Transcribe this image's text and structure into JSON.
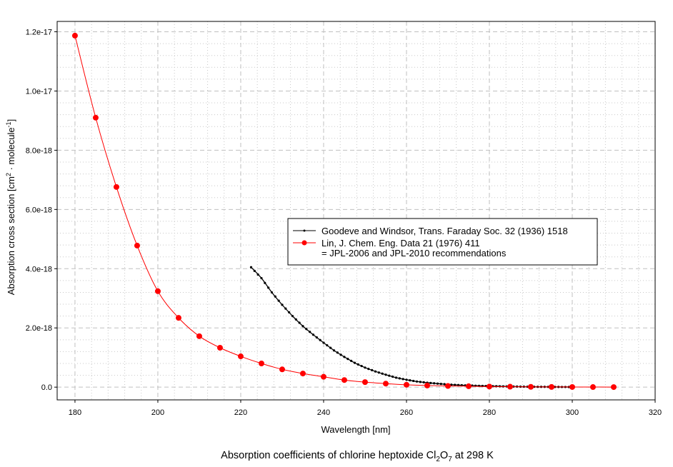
{
  "chart_data": {
    "type": "line",
    "title": "Absorption coefficients of chlorine heptoxide Cl2O7 at 298 K",
    "title_parts": {
      "pre": "Absorption coefficients of chlorine heptoxide Cl",
      "sub1": "2",
      "mid": "O",
      "sub2": "7",
      "post": " at 298 K"
    },
    "xlabel": "Wavelength [nm]",
    "ylabel": {
      "pre": "Absorption cross section [cm",
      "sup1": "2",
      "mid": " · molecule",
      "sup2": "-1",
      "post": "]"
    },
    "xlim": [
      175.7,
      320
    ],
    "ylim": [
      -4.3e-19,
      1.235e-17
    ],
    "xticks": [
      180,
      200,
      220,
      240,
      260,
      280,
      300,
      320
    ],
    "yticks": [
      0,
      2e-18,
      4e-18,
      6e-18,
      8e-18,
      1e-17,
      1.2e-17
    ],
    "ytick_labels": [
      "0.0",
      "2.0e-18",
      "4.0e-18",
      "6.0e-18",
      "8.0e-18",
      "1.0e-17",
      "1.2e-17"
    ],
    "grid": true,
    "legend_placement": "center-right",
    "series": [
      {
        "name": "Goodeve and Windsor, Trans. Faraday Soc. 32 (1936) 1518",
        "color": "#000000",
        "x": [
          222.5,
          225,
          227.5,
          230,
          232.5,
          235,
          237.5,
          240,
          242.5,
          245,
          247.5,
          250,
          252.5,
          255,
          257.5,
          260,
          262.5,
          265,
          267.5,
          270,
          272.5,
          275,
          277.5,
          280,
          282.5,
          285,
          287.5,
          290,
          292.5,
          295,
          297.5,
          300
        ],
        "y": [
          4.05e-18,
          3.68e-18,
          3.2e-18,
          2.78e-18,
          2.4e-18,
          2.06e-18,
          1.77e-18,
          1.5e-18,
          1.24e-18,
          1.02e-18,
          8.2e-19,
          6.6e-19,
          5.3e-19,
          4.2e-19,
          3.2e-19,
          2.5e-19,
          1.9e-19,
          1.5e-19,
          1.2e-19,
          9e-20,
          7e-20,
          5.5e-20,
          4.5e-20,
          3.5e-20,
          2.8e-20,
          2.2e-20,
          1.7e-20,
          1.3e-20,
          1e-20,
          8e-21,
          6e-21,
          5e-21
        ]
      },
      {
        "name": "Lin, J. Chem. Eng. Data 21 (1976) 411",
        "name_line2": "= JPL-2006 and JPL-2010 recommendations",
        "color": "#ff0000",
        "x": [
          180,
          185,
          190,
          195,
          200,
          205,
          210,
          215,
          220,
          225,
          230,
          235,
          240,
          245,
          250,
          255,
          260,
          265,
          270,
          275,
          280,
          285,
          290,
          295,
          300,
          305,
          310
        ],
        "y": [
          1.187e-17,
          9.1e-18,
          6.76e-18,
          4.78e-18,
          3.24e-18,
          2.34e-18,
          1.72e-18,
          1.33e-18,
          1.04e-18,
          8e-19,
          6e-19,
          4.6e-19,
          3.5e-19,
          2.4e-19,
          1.7e-19,
          1.2e-19,
          8e-20,
          5.5e-20,
          4e-20,
          3e-20,
          2e-20,
          1.5e-20,
          1e-20,
          7e-21,
          5e-21,
          3e-21,
          2e-21
        ]
      }
    ]
  }
}
